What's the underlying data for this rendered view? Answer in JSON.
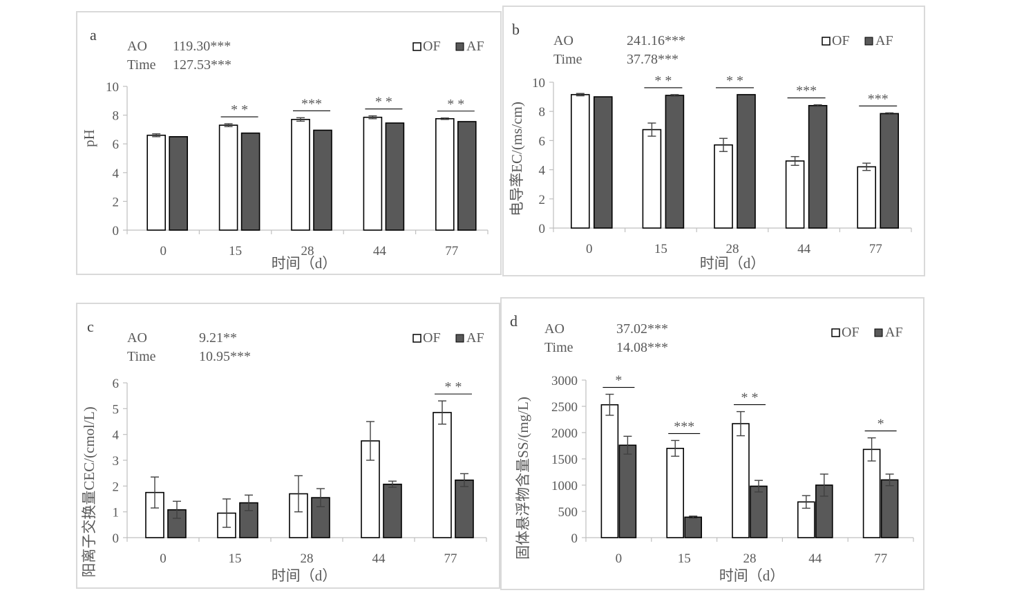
{
  "chart_data": [
    {
      "type": "bar",
      "panel_label": "a",
      "stats": [
        {
          "name": "AO",
          "value": "119.30***"
        },
        {
          "name": "Time",
          "value": "127.53***"
        }
      ],
      "legend": [
        "OF",
        "AF"
      ],
      "legend_position": "top-right",
      "categories": [
        "0",
        "15",
        "28",
        "44",
        "77"
      ],
      "series": [
        {
          "name": "OF",
          "values": [
            6.6,
            7.3,
            7.7,
            7.85,
            7.75
          ],
          "errors": [
            0.1,
            0.1,
            0.12,
            0.1,
            0.05
          ]
        },
        {
          "name": "AF",
          "values": [
            6.5,
            6.75,
            6.95,
            7.45,
            7.55
          ],
          "errors": [
            0,
            0,
            0,
            0,
            0
          ]
        }
      ],
      "significance": [
        "",
        "*  *",
        "***",
        "*  *",
        "*  *"
      ],
      "xlabel": "时间（d）",
      "ylabel": "pH",
      "ylim": [
        0,
        10
      ],
      "yticks": [
        0,
        2,
        4,
        6,
        8,
        10
      ],
      "grid": false
    },
    {
      "type": "bar",
      "panel_label": "b",
      "stats": [
        {
          "name": "AO",
          "value": "241.16***"
        },
        {
          "name": "Time",
          "value": "37.78***"
        }
      ],
      "legend": [
        "OF",
        "AF"
      ],
      "legend_position": "top-right",
      "categories": [
        "0",
        "15",
        "28",
        "44",
        "77"
      ],
      "series": [
        {
          "name": "OF",
          "values": [
            9.15,
            6.75,
            5.7,
            4.6,
            4.2
          ],
          "errors": [
            0.08,
            0.45,
            0.45,
            0.3,
            0.25
          ]
        },
        {
          "name": "AF",
          "values": [
            9.0,
            9.1,
            9.15,
            8.4,
            7.85
          ],
          "errors": [
            0,
            0.05,
            0,
            0.05,
            0.05
          ]
        }
      ],
      "significance": [
        "",
        "*  *",
        "*  *",
        "***",
        "***"
      ],
      "xlabel": "时间（d）",
      "ylabel": "电导率EC/(ms/cm)",
      "ylim": [
        0,
        10
      ],
      "yticks": [
        0,
        2,
        4,
        6,
        8,
        10
      ],
      "grid": false
    },
    {
      "type": "bar",
      "panel_label": "c",
      "stats": [
        {
          "name": "AO",
          "value": "9.21**"
        },
        {
          "name": "Time",
          "value": "10.95***"
        }
      ],
      "legend": [
        "OF",
        "AF"
      ],
      "legend_position": "top-right",
      "categories": [
        "0",
        "15",
        "28",
        "44",
        "77"
      ],
      "series": [
        {
          "name": "OF",
          "values": [
            1.75,
            0.95,
            1.7,
            3.75,
            4.85
          ],
          "errors": [
            0.6,
            0.55,
            0.7,
            0.75,
            0.45
          ]
        },
        {
          "name": "AF",
          "values": [
            1.08,
            1.35,
            1.55,
            2.07,
            2.23
          ],
          "errors": [
            0.33,
            0.3,
            0.35,
            0.12,
            0.25
          ]
        }
      ],
      "significance": [
        "",
        "",
        "",
        "",
        "*  *"
      ],
      "xlabel": "时间（d）",
      "ylabel": "阳离子交换量CEC/(cmol/L)",
      "ylim": [
        0,
        6
      ],
      "yticks": [
        0,
        1,
        2,
        3,
        4,
        5,
        6
      ],
      "grid": false
    },
    {
      "type": "bar",
      "panel_label": "d",
      "stats": [
        {
          "name": "AO",
          "value": "37.02***"
        },
        {
          "name": "Time",
          "value": "14.08***"
        }
      ],
      "legend": [
        "OF",
        "AF"
      ],
      "legend_position": "top-right",
      "categories": [
        "0",
        "15",
        "28",
        "44",
        "77"
      ],
      "series": [
        {
          "name": "OF",
          "values": [
            2530,
            1700,
            2170,
            680,
            1680
          ],
          "errors": [
            200,
            150,
            230,
            120,
            220
          ]
        },
        {
          "name": "AF",
          "values": [
            1760,
            390,
            980,
            1000,
            1100
          ],
          "errors": [
            170,
            20,
            110,
            210,
            110
          ]
        }
      ],
      "significance": [
        "*",
        "***",
        "*  *",
        "",
        "*"
      ],
      "xlabel": "时间（d）",
      "ylabel": "固体悬浮物含量SS/(mg/L)",
      "ylim": [
        0,
        3000
      ],
      "yticks": [
        0,
        500,
        1000,
        1500,
        2000,
        2500,
        3000
      ],
      "grid": false
    }
  ]
}
